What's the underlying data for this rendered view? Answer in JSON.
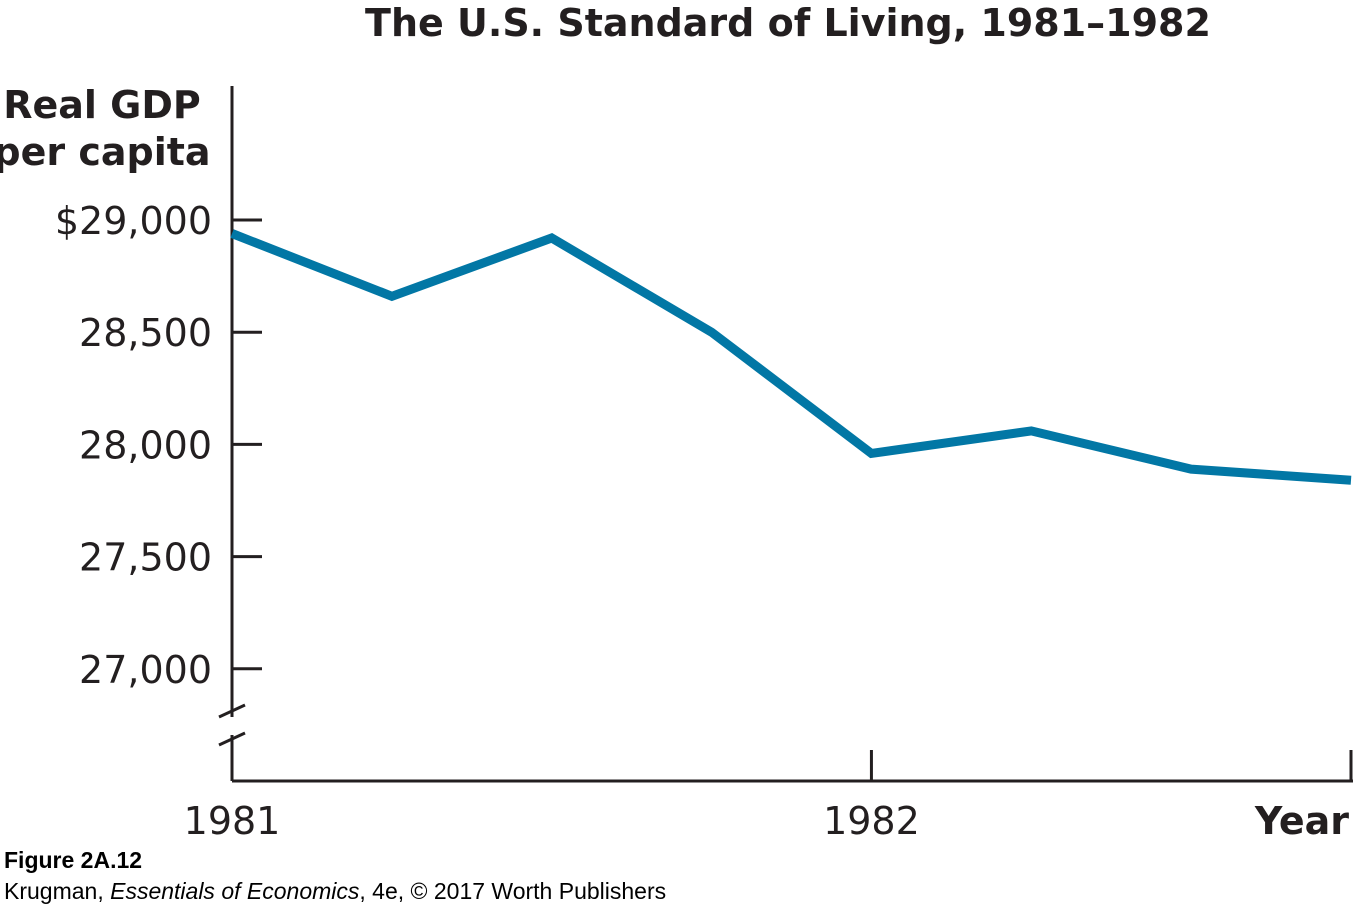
{
  "chart_data": {
    "type": "line",
    "title": "The U.S. Standard of Living, 1981–1982",
    "ylabel_lines": [
      "Real GDP",
      "per capita"
    ],
    "xlabel": "Year",
    "x_ticks": [
      "1981",
      "1982"
    ],
    "x_range": [
      1981.0,
      1982.75
    ],
    "y_ticks": [
      {
        "value": 29000,
        "label": "$29,000"
      },
      {
        "value": 28500,
        "label": "28,500"
      },
      {
        "value": 28000,
        "label": "28,000"
      },
      {
        "value": 27500,
        "label": "27,500"
      },
      {
        "value": 27000,
        "label": "27,000"
      }
    ],
    "ylim": [
      26500,
      29000
    ],
    "y_axis_break": true,
    "line_color": "#0277a5",
    "series": [
      {
        "x": [
          1981.0,
          1981.25,
          1981.5,
          1981.75,
          1982.0,
          1982.25,
          1982.5,
          1982.75
        ],
        "values": [
          28940,
          28660,
          28920,
          28500,
          27960,
          28060,
          27890,
          27840
        ]
      }
    ]
  },
  "caption": {
    "figure": "Figure 2A.12",
    "credit_author": "Krugman, ",
    "credit_book": "Essentials of Economics",
    "credit_rest": ", 4e, © 2017 Worth Publishers"
  }
}
